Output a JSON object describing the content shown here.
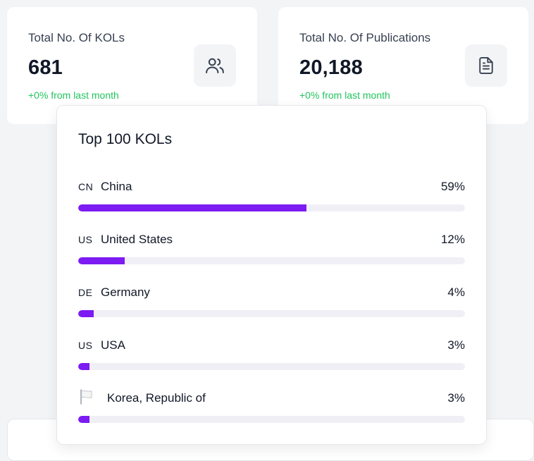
{
  "stats": {
    "kols": {
      "title": "Total No. Of KOLs",
      "value": "681",
      "change": "+0% from last month",
      "icon": "users-icon"
    },
    "publications": {
      "title": "Total No. Of Publications",
      "value": "20,188",
      "change": "+0% from last month",
      "icon": "document-icon"
    }
  },
  "top_kols": {
    "title": "Top 100 KOLs",
    "items": [
      {
        "code": "CN",
        "country": "China",
        "percent": "59%",
        "value": 59
      },
      {
        "code": "US",
        "country": "United States",
        "percent": "12%",
        "value": 12
      },
      {
        "code": "DE",
        "country": "Germany",
        "percent": "4%",
        "value": 4
      },
      {
        "code": "US",
        "country": "USA",
        "percent": "3%",
        "value": 3
      },
      {
        "code": "",
        "icon": "white-flag-icon",
        "country": "Korea, Republic of",
        "percent": "3%",
        "value": 3
      }
    ]
  },
  "colors": {
    "accent": "#7c1bf2",
    "positive": "#22c55e",
    "track": "#f1eff6"
  }
}
